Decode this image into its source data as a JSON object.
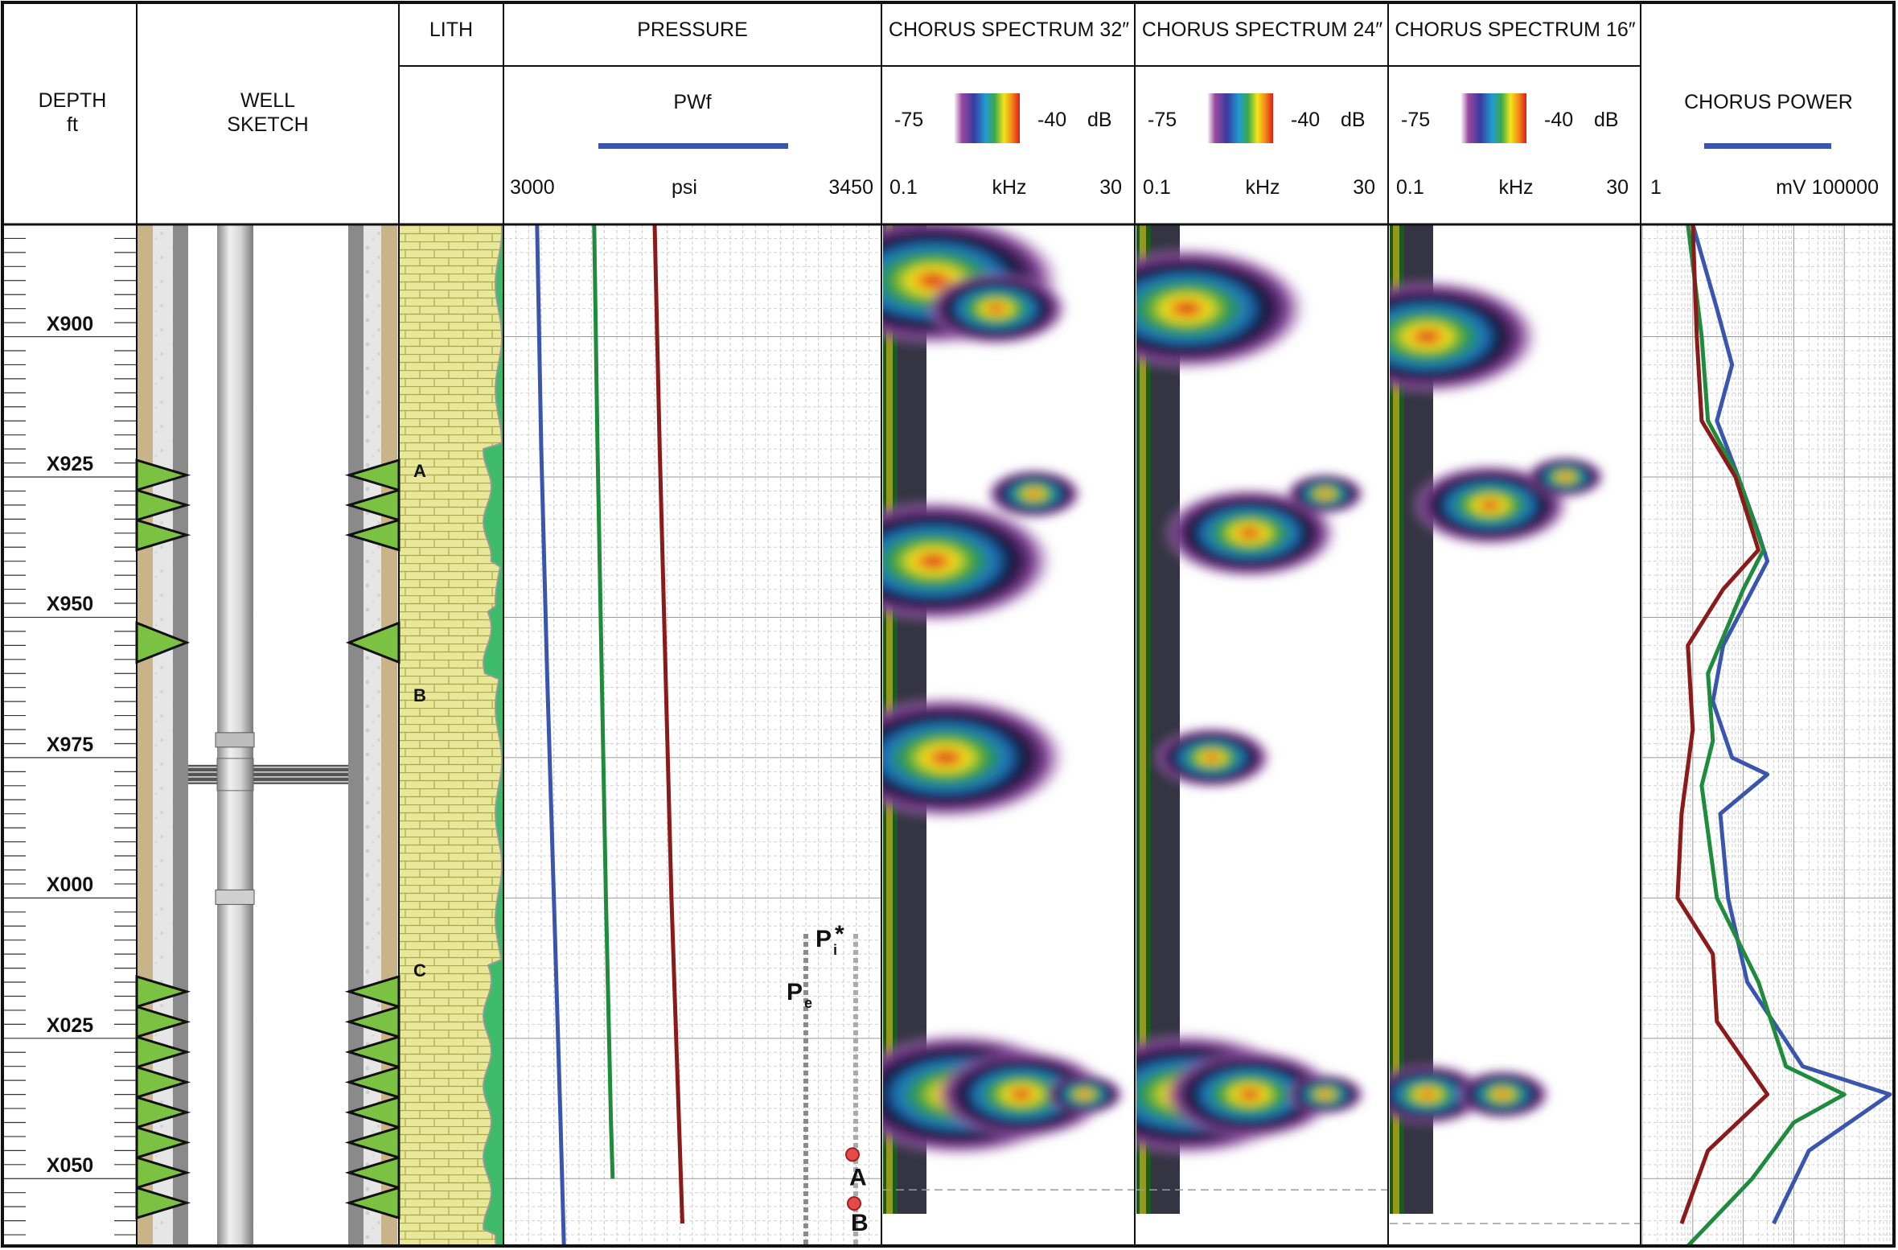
{
  "header": {
    "depth_title": "DEPTH",
    "depth_unit": "ft",
    "well_title_1": "WELL",
    "well_title_2": "SKETCH",
    "lith_title": "LITH",
    "pressure_title": "PRESSURE",
    "pressure_curve": "PWf",
    "pressure_min": "3000",
    "pressure_unit": "psi",
    "pressure_max": "3450",
    "power_title": "CHORUS POWER",
    "power_min": "1",
    "power_unit_max": "mV 100000",
    "spectra": [
      {
        "title": "CHORUS SPECTRUM 32″",
        "db_min": "-75",
        "db_max": "-40",
        "db_unit": "dB",
        "f_min": "0.1",
        "f_unit": "kHz",
        "f_max": "30"
      },
      {
        "title": "CHORUS SPECTRUM 24″",
        "db_min": "-75",
        "db_max": "-40",
        "db_unit": "dB",
        "f_min": "0.1",
        "f_unit": "kHz",
        "f_max": "30"
      },
      {
        "title": "CHORUS SPECTRUM 16″",
        "db_min": "-75",
        "db_max": "-40",
        "db_unit": "dB",
        "f_min": "0.1",
        "f_unit": "kHz",
        "f_max": "30"
      }
    ]
  },
  "colors": {
    "blue": "#3a55ad",
    "green": "#1e8c3c",
    "darkred": "#8b1a1a",
    "lith_fill": "#e8e79a",
    "perforation": "#7cc242"
  },
  "chart_data": {
    "type": "well-log",
    "depth_axis": {
      "range": [
        880,
        1062
      ],
      "labels": [
        "X900",
        "X925",
        "X950",
        "X975",
        "X000",
        "X025",
        "X050"
      ],
      "label_depths": [
        900,
        925,
        950,
        975,
        1000,
        1025,
        1050
      ]
    },
    "zones": [
      {
        "label": "A",
        "depth": 925
      },
      {
        "label": "B",
        "depth": 965
      },
      {
        "label": "C",
        "depth": 1014
      }
    ],
    "perforations": [
      [
        922,
        938
      ],
      [
        951,
        958
      ],
      [
        1014,
        1057
      ]
    ],
    "packer_depth": 978,
    "pressure": {
      "xlim": [
        3000,
        3450
      ],
      "series": [
        {
          "color": "blue",
          "points": [
            [
              3040,
              880
            ],
            [
              3045,
              920
            ],
            [
              3052,
              960
            ],
            [
              3060,
              1000
            ],
            [
              3068,
              1040
            ],
            [
              3072,
              1062
            ]
          ]
        },
        {
          "color": "green",
          "points": [
            [
              3108,
              880
            ],
            [
              3112,
              920
            ],
            [
              3117,
              960
            ],
            [
              3122,
              1000
            ],
            [
              3128,
              1040
            ],
            [
              3130,
              1050
            ]
          ]
        },
        {
          "color": "darkred",
          "points": [
            [
              3180,
              880
            ],
            [
              3186,
              920
            ],
            [
              3193,
              960
            ],
            [
              3200,
              1000
            ],
            [
              3209,
              1040
            ],
            [
              3213,
              1058
            ]
          ]
        }
      ],
      "markers": [
        {
          "label": "P",
          "subscript": "e",
          "depth": 1015
        },
        {
          "label": "P",
          "subscript": "i",
          "suffix": "*",
          "depth": 1015
        },
        {
          "label": "A",
          "depth": 1046
        },
        {
          "label": "B",
          "depth": 1055
        }
      ]
    },
    "spectra": [
      {
        "title": "32″",
        "blobs": [
          [
            0.2,
            890,
            0.32
          ],
          [
            0.45,
            895,
            0.18
          ],
          [
            0.2,
            940,
            0.3
          ],
          [
            0.6,
            928,
            0.12
          ],
          [
            0.25,
            975,
            0.3
          ],
          [
            0.3,
            1035,
            0.3
          ],
          [
            0.55,
            1035,
            0.22
          ],
          [
            0.8,
            1035,
            0.1
          ]
        ]
      },
      {
        "title": "24″",
        "blobs": [
          [
            0.2,
            895,
            0.3
          ],
          [
            0.45,
            935,
            0.22
          ],
          [
            0.75,
            928,
            0.1
          ],
          [
            0.3,
            975,
            0.15
          ],
          [
            0.2,
            1035,
            0.3
          ],
          [
            0.45,
            1035,
            0.22
          ],
          [
            0.75,
            1035,
            0.1
          ]
        ]
      },
      {
        "title": "16″",
        "blobs": [
          [
            0.15,
            900,
            0.28
          ],
          [
            0.4,
            930,
            0.2
          ],
          [
            0.7,
            925,
            0.1
          ],
          [
            0.15,
            1035,
            0.15
          ],
          [
            0.45,
            1035,
            0.12
          ]
        ]
      }
    ],
    "chorus_power": {
      "xlim": [
        1,
        100000
      ],
      "scale": "log",
      "series": [
        {
          "color": "blue",
          "points": [
            [
              10,
              880
            ],
            [
              30,
              895
            ],
            [
              60,
              905
            ],
            [
              30,
              915
            ],
            [
              80,
              925
            ],
            [
              200,
              935
            ],
            [
              300,
              940
            ],
            [
              40,
              955
            ],
            [
              25,
              965
            ],
            [
              60,
              975
            ],
            [
              300,
              978
            ],
            [
              35,
              985
            ],
            [
              50,
              1000
            ],
            [
              120,
              1015
            ],
            [
              1500,
              1030
            ],
            [
              80000,
              1035
            ],
            [
              2000,
              1045
            ],
            [
              400,
              1058
            ]
          ]
        },
        {
          "color": "green",
          "points": [
            [
              8,
              880
            ],
            [
              15,
              900
            ],
            [
              20,
              915
            ],
            [
              80,
              925
            ],
            [
              250,
              938
            ],
            [
              100,
              945
            ],
            [
              20,
              960
            ],
            [
              25,
              972
            ],
            [
              15,
              980
            ],
            [
              30,
              1000
            ],
            [
              200,
              1015
            ],
            [
              700,
              1030
            ],
            [
              10000,
              1035
            ],
            [
              1000,
              1040
            ],
            [
              150,
              1050
            ],
            [
              8,
              1062
            ]
          ]
        },
        {
          "color": "darkred",
          "points": [
            [
              10,
              880
            ],
            [
              12,
              900
            ],
            [
              15,
              915
            ],
            [
              70,
              925
            ],
            [
              200,
              938
            ],
            [
              40,
              945
            ],
            [
              8,
              955
            ],
            [
              10,
              970
            ],
            [
              6,
              985
            ],
            [
              5,
              1000
            ],
            [
              25,
              1010
            ],
            [
              30,
              1022
            ],
            [
              300,
              1035
            ],
            [
              20,
              1045
            ],
            [
              6,
              1058
            ]
          ]
        }
      ]
    }
  }
}
